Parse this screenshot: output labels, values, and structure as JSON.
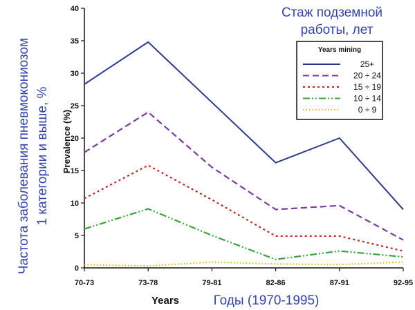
{
  "colors": {
    "ru_text": "#3344b0",
    "axis": "#111111"
  },
  "ru_labels": {
    "y_title_line1": "Частота заболевания пневмокониозом",
    "y_title_line2": "1 категории и выше, %",
    "legend_title_line1": "Стаж подземной",
    "legend_title_line2": "работы, лет",
    "x_title": "Годы (1970-1995)"
  },
  "chart_data": {
    "type": "line",
    "categories": [
      "70-73",
      "73-78",
      "79-81",
      "82-86",
      "87-91",
      "92-95"
    ],
    "xlabel": "Years",
    "ylabel": "Prevalence (%)",
    "ylim": [
      0,
      40
    ],
    "yticks": [
      0,
      5,
      10,
      15,
      20,
      25,
      30,
      35,
      40
    ],
    "grid": false,
    "legend": {
      "title": "Years mining",
      "position": "top-right"
    },
    "series": [
      {
        "name": "25+",
        "color": "#2b3a8c",
        "dash": "solid",
        "values": [
          28.3,
          34.8,
          25.5,
          16.2,
          20.0,
          9.0
        ]
      },
      {
        "name": "20 ÷ 24",
        "color": "#7a3b9e",
        "dash": "dashed",
        "values": [
          17.8,
          24.0,
          15.5,
          9.0,
          9.6,
          4.3
        ]
      },
      {
        "name": "15 ÷ 19",
        "color": "#cc2020",
        "dash": "dotted",
        "values": [
          10.7,
          15.8,
          10.5,
          4.9,
          4.9,
          2.6
        ]
      },
      {
        "name": "10 ÷ 14",
        "color": "#3aa33a",
        "dash": "dashdotdot",
        "values": [
          6.0,
          9.1,
          5.0,
          1.3,
          2.6,
          1.7
        ]
      },
      {
        "name": "0 ÷ 9",
        "color": "#e6b800",
        "dash": "finedot",
        "values": [
          0.5,
          0.3,
          0.9,
          0.6,
          0.5,
          0.9
        ]
      }
    ]
  }
}
